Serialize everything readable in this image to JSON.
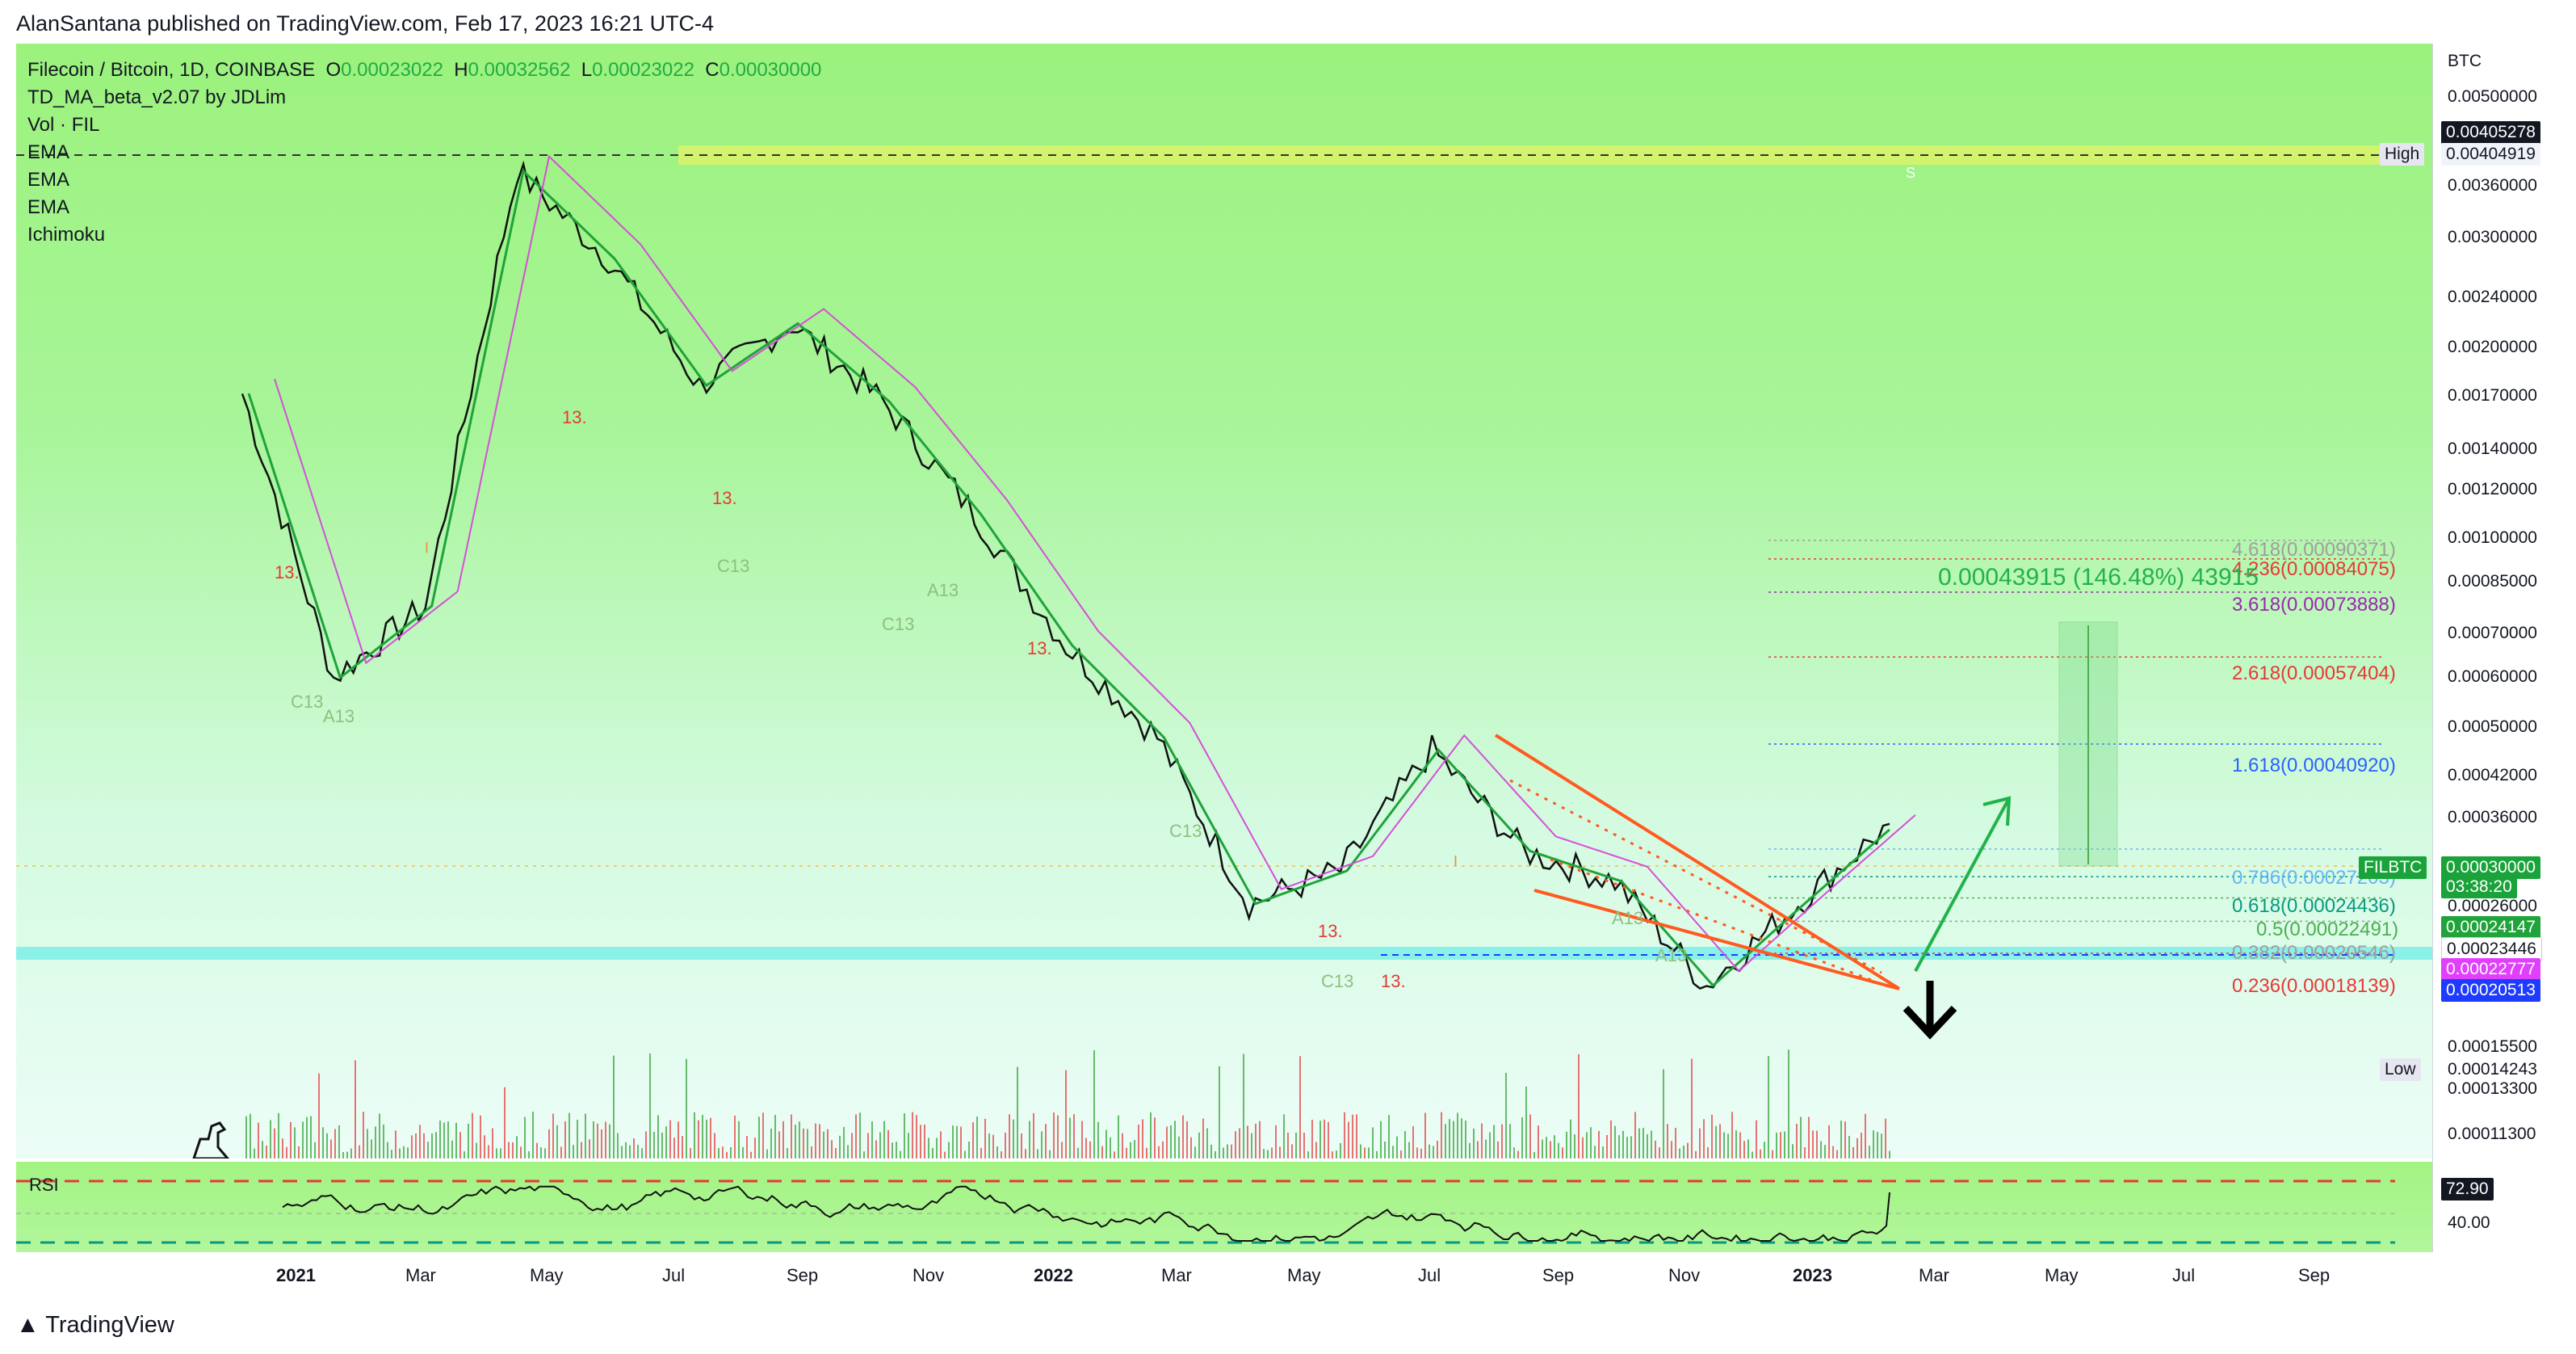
{
  "header": {
    "published_by": "AlanSantana published on TradingView.com, Feb 17, 2023 16:21 UTC-4"
  },
  "legend": {
    "symbol": "Filecoin / Bitcoin, 1D, COINBASE",
    "o_label": "O",
    "o_value": "0.00023022",
    "h_label": "H",
    "h_value": "0.00032562",
    "l_label": "L",
    "l_value": "0.00023022",
    "c_label": "C",
    "c_value": "0.00030000",
    "indicators": [
      "TD_MA_beta_v2.07 by JDLim",
      "Vol · FIL",
      "EMA",
      "EMA",
      "EMA",
      "Ichimoku"
    ]
  },
  "price_axis": {
    "unit": "BTC",
    "ticks": [
      "0.00500000",
      "0.00360000",
      "0.00300000",
      "0.00240000",
      "0.00200000",
      "0.00170000",
      "0.00140000",
      "0.00120000",
      "0.00100000",
      "0.00085000",
      "0.00070000",
      "0.00060000",
      "0.00050000",
      "0.00042000",
      "0.00036000",
      "0.00026000",
      "0.00015500",
      "0.00014243",
      "0.00013300",
      "0.00011300"
    ],
    "tags": {
      "top_dark": "0.00405278",
      "high_label": "High",
      "high_value": "0.00404919",
      "symbol_label": "FILBTC",
      "last_price": "0.00030000",
      "countdown": "03:38:20",
      "ema_green": "0.00024147",
      "ema_white": "0.00023446",
      "ema_magenta": "0.00022777",
      "ema_blue": "0.00020513",
      "low_label": "Low"
    }
  },
  "fib_levels": [
    {
      "label": "4.618(0.00090371)",
      "color": "#9e9e9e"
    },
    {
      "label": "4.236(0.00084075)",
      "color": "#e53935"
    },
    {
      "label": "3.618(0.00073888)",
      "color": "#9c27b0"
    },
    {
      "label": "2.618(0.00057404)",
      "color": "#e53935"
    },
    {
      "label": "1.618(0.00040920)",
      "color": "#2962ff"
    },
    {
      "label": "0.786(0.00027203)",
      "color": "#64b5f6"
    },
    {
      "label": "0.618(0.00024436)",
      "color": "#089981"
    },
    {
      "label": "0.5(0.00022491)",
      "color": "#4caf50"
    },
    {
      "label": "0.382(0.00020546)",
      "color": "#9e9e9e"
    },
    {
      "label": "0.236(0.00018139)",
      "color": "#e53935"
    }
  ],
  "measure_label": "0.00043915 (146.48%) 43915",
  "td_labels": {
    "red": "13.",
    "red_plain": "13",
    "a13": "A13",
    "c13": "C13",
    "i": "I",
    "s": "S"
  },
  "rsi": {
    "label": "RSI",
    "value": "72.90",
    "level": "40.00"
  },
  "time_axis": [
    "2021",
    "Mar",
    "May",
    "Jul",
    "Sep",
    "Nov",
    "2022",
    "Mar",
    "May",
    "Jul",
    "Sep",
    "Nov",
    "2023",
    "Mar",
    "May",
    "Jul",
    "Sep"
  ],
  "chart_data": {
    "type": "line",
    "title": "Filecoin / Bitcoin, 1D, COINBASE",
    "ylabel": "BTC",
    "y_scale": "log",
    "ylim": [
      0.000105,
      0.0055
    ],
    "x": [
      "2021-01",
      "2021-03",
      "2021-04",
      "2021-05",
      "2021-06",
      "2021-08",
      "2021-09",
      "2021-10",
      "2021-12",
      "2022-02",
      "2022-04",
      "2022-06",
      "2022-07",
      "2022-08",
      "2022-10",
      "2022-11",
      "2022-12",
      "2023-01",
      "2023-02"
    ],
    "series": [
      {
        "values": [
          0.0016,
          0.00053,
          0.0007,
          0.0038,
          0.0027,
          0.00165,
          0.0021,
          0.00155,
          0.001,
          0.0006,
          0.00042,
          0.00022,
          0.00025,
          0.0004,
          0.00027,
          0.00024,
          0.00016,
          0.00022,
          0.0003
        ]
      }
    ],
    "fib_extension": {
      "levels": [
        {
          "ratio": 4.618,
          "price": 0.00090371
        },
        {
          "ratio": 4.236,
          "price": 0.00084075
        },
        {
          "ratio": 3.618,
          "price": 0.00073888
        },
        {
          "ratio": 2.618,
          "price": 0.00057404
        },
        {
          "ratio": 1.618,
          "price": 0.0004092
        },
        {
          "ratio": 0.786,
          "price": 0.00027203
        },
        {
          "ratio": 0.618,
          "price": 0.00024436
        },
        {
          "ratio": 0.5,
          "price": 0.00022491
        },
        {
          "ratio": 0.382,
          "price": 0.00020546
        },
        {
          "ratio": 0.236,
          "price": 0.00018139
        }
      ]
    },
    "high": 0.00404919,
    "last": 0.0003,
    "rsi_last": 72.9,
    "grid": false
  }
}
